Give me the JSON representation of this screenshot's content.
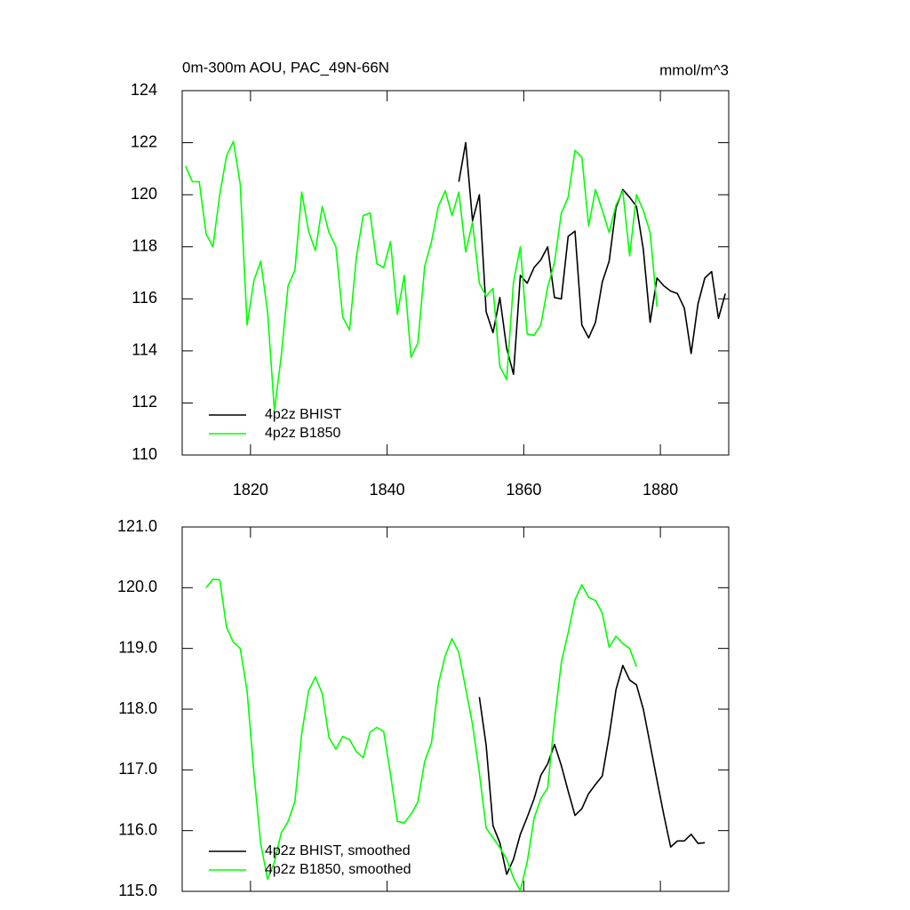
{
  "chart_data": [
    {
      "type": "line",
      "title": "0m-300m AOU, PAC_49N-66N",
      "units": "mmol/m^3",
      "xlim": [
        1810,
        1890
      ],
      "xticks": [
        1820,
        1840,
        1860,
        1880
      ],
      "xtick_labels": true,
      "ylim": [
        110,
        124
      ],
      "yticks": [
        110,
        112,
        114,
        116,
        118,
        120,
        122,
        124
      ],
      "legend": "lower left",
      "series": [
        {
          "name": "4p2z BHIST",
          "color": "#000000",
          "x": [
            1850.5,
            1851.5,
            1852.5,
            1853.5,
            1854.5,
            1855.5,
            1856.5,
            1857.5,
            1858.5,
            1859.5,
            1860.5,
            1861.5,
            1862.5,
            1863.5,
            1864.5,
            1865.5,
            1866.5,
            1867.5,
            1868.5,
            1869.5,
            1870.5,
            1871.5,
            1872.5,
            1873.5,
            1874.5,
            1875.5,
            1876.5,
            1877.5,
            1878.5,
            1879.5,
            1880.5,
            1881.5,
            1882.5,
            1883.5,
            1884.5,
            1885.5,
            1886.5,
            1887.5,
            1888.5,
            1889.5
          ],
          "values": [
            120.5,
            122.0,
            119.0,
            120.0,
            115.5,
            114.7,
            116.05,
            114.1,
            113.1,
            116.9,
            116.6,
            117.2,
            117.5,
            118.0,
            116.05,
            116.0,
            118.4,
            118.6,
            115.0,
            114.5,
            115.1,
            116.65,
            117.45,
            119.5,
            120.2,
            119.9,
            119.55,
            117.9,
            115.1,
            116.8,
            116.5,
            116.3,
            116.2,
            115.65,
            113.9,
            115.8,
            116.8,
            117.05,
            115.25,
            116.2
          ]
        },
        {
          "name": "4p2z B1850",
          "color": "#00ff00",
          "x": [
            1810.5,
            1811.5,
            1812.5,
            1813.5,
            1814.5,
            1815.5,
            1816.5,
            1817.5,
            1818.5,
            1819.5,
            1820.5,
            1821.5,
            1822.5,
            1823.5,
            1824.5,
            1825.5,
            1826.5,
            1827.5,
            1828.5,
            1829.5,
            1830.5,
            1831.5,
            1832.5,
            1833.5,
            1834.5,
            1835.5,
            1836.5,
            1837.5,
            1838.5,
            1839.5,
            1840.5,
            1841.5,
            1842.5,
            1843.5,
            1844.5,
            1845.5,
            1846.5,
            1847.5,
            1848.5,
            1849.5,
            1850.5,
            1851.5,
            1852.5,
            1853.5,
            1854.5,
            1855.5,
            1856.5,
            1857.5,
            1858.5,
            1859.5,
            1860.5,
            1861.5,
            1862.5,
            1863.5,
            1864.5,
            1865.5,
            1866.5,
            1867.5,
            1868.5,
            1869.5,
            1870.5,
            1871.5,
            1872.5,
            1873.5,
            1874.5,
            1875.5,
            1876.5,
            1877.5,
            1878.5,
            1879.5
          ],
          "values": [
            121.1,
            120.5,
            120.5,
            118.5,
            118.0,
            120.0,
            121.5,
            122.05,
            120.4,
            115.0,
            116.7,
            117.45,
            115.5,
            111.7,
            113.8,
            116.5,
            117.1,
            120.1,
            118.6,
            117.85,
            119.55,
            118.55,
            118.0,
            115.3,
            114.8,
            117.6,
            119.2,
            119.3,
            117.35,
            117.2,
            118.2,
            115.4,
            116.9,
            113.75,
            114.3,
            117.25,
            118.2,
            119.55,
            120.15,
            119.2,
            120.1,
            117.8,
            118.95,
            116.6,
            116.1,
            116.4,
            113.4,
            112.9,
            116.65,
            118.0,
            114.65,
            114.6,
            115.0,
            116.45,
            117.4,
            119.3,
            119.9,
            121.7,
            121.45,
            118.8,
            120.2,
            119.4,
            118.55,
            119.6,
            120.15,
            117.65,
            120.0,
            119.4,
            118.55,
            115.7
          ]
        }
      ]
    },
    {
      "type": "line",
      "xlim": [
        1810,
        1890
      ],
      "xticks": [
        1820,
        1840,
        1860,
        1880
      ],
      "xtick_labels": false,
      "ylim": [
        115,
        121
      ],
      "yticks": [
        {
          "value": 115,
          "label": "115.0"
        },
        {
          "value": 116,
          "label": "116.0"
        },
        {
          "value": 117,
          "label": "117.0"
        },
        {
          "value": 118,
          "label": "118.0"
        },
        {
          "value": 119,
          "label": "119.0"
        },
        {
          "value": 120,
          "label": "120.0"
        },
        {
          "value": 121,
          "label": "121.0"
        }
      ],
      "legend": "lower left",
      "series": [
        {
          "name": "4p2z BHIST, smoothed",
          "color": "#000000",
          "x": [
            1853.5,
            1854.5,
            1855.5,
            1856.5,
            1857.5,
            1858.5,
            1859.5,
            1860.5,
            1861.5,
            1862.5,
            1863.5,
            1864.5,
            1865.5,
            1866.5,
            1867.5,
            1868.5,
            1869.5,
            1870.5,
            1871.5,
            1872.5,
            1873.5,
            1874.5,
            1875.5,
            1876.5,
            1877.5,
            1878.5,
            1879.5,
            1880.5,
            1881.5,
            1882.5,
            1883.5,
            1884.5,
            1885.5,
            1886.5
          ],
          "values": [
            118.2,
            117.4,
            116.08,
            115.8,
            115.28,
            115.53,
            115.94,
            116.22,
            116.52,
            116.91,
            117.1,
            117.42,
            117.07,
            116.65,
            116.25,
            116.36,
            116.61,
            116.76,
            116.9,
            117.56,
            118.32,
            118.72,
            118.48,
            118.4,
            118.0,
            117.42,
            116.83,
            116.26,
            115.73,
            115.83,
            115.83,
            115.94,
            115.79,
            115.8
          ]
        },
        {
          "name": "4p2z B1850, smoothed",
          "color": "#00ff00",
          "x": [
            1813.5,
            1814.5,
            1815.5,
            1816.5,
            1817.5,
            1818.5,
            1819.5,
            1820.5,
            1821.5,
            1822.5,
            1823.5,
            1824.5,
            1825.5,
            1826.5,
            1827.5,
            1828.5,
            1829.5,
            1830.5,
            1831.5,
            1832.5,
            1833.5,
            1834.5,
            1835.5,
            1836.5,
            1837.5,
            1838.5,
            1839.5,
            1840.5,
            1841.5,
            1842.5,
            1843.5,
            1844.5,
            1845.5,
            1846.5,
            1847.5,
            1848.5,
            1849.5,
            1850.5,
            1851.5,
            1852.5,
            1853.5,
            1854.5,
            1855.5,
            1856.5,
            1857.5,
            1858.5,
            1859.5,
            1860.5,
            1861.5,
            1862.5,
            1863.5,
            1864.5,
            1865.5,
            1866.5,
            1867.5,
            1868.5,
            1869.5,
            1870.5,
            1871.5,
            1872.5,
            1873.5,
            1874.5,
            1875.5,
            1876.5
          ],
          "values": [
            120.0,
            120.14,
            120.13,
            119.35,
            119.1,
            119.0,
            118.3,
            116.95,
            115.78,
            115.2,
            115.48,
            115.96,
            116.15,
            116.48,
            117.6,
            118.3,
            118.53,
            118.26,
            117.53,
            117.34,
            117.55,
            117.5,
            117.3,
            117.2,
            117.62,
            117.7,
            117.63,
            116.92,
            116.15,
            116.13,
            116.27,
            116.47,
            117.14,
            117.45,
            118.41,
            118.88,
            119.16,
            118.93,
            118.34,
            117.75,
            116.95,
            116.04,
            115.88,
            115.72,
            115.53,
            115.22,
            115.01,
            115.48,
            116.2,
            116.53,
            116.7,
            117.82,
            118.77,
            119.26,
            119.8,
            120.05,
            119.84,
            119.79,
            119.58,
            119.02,
            119.2,
            119.08,
            119.0,
            118.7
          ]
        }
      ]
    }
  ]
}
